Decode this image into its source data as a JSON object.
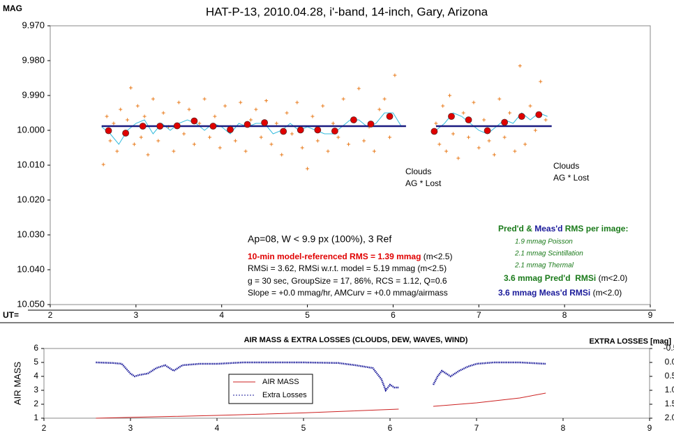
{
  "chart_data": [
    {
      "type": "scatter",
      "title": "HAT-P-13, 2010.04.28, i'-band, 14-inch, Gary, Arizona",
      "ylabel": "MAG",
      "xlabel": "UT=",
      "ylim": [
        9.97,
        10.05
      ],
      "reverse_y": true,
      "yticks": [
        {
          "value": 9.97,
          "label": "9.970"
        },
        {
          "value": 9.98,
          "label": "9.980"
        },
        {
          "value": 9.99,
          "label": "9.990"
        },
        {
          "value": 10,
          "label": "10.000"
        },
        {
          "value": 10.01,
          "label": "10.010"
        },
        {
          "value": 10.02,
          "label": "10.020"
        },
        {
          "value": 10.03,
          "label": "10.030"
        },
        {
          "value": 10.04,
          "label": "10.040"
        },
        {
          "value": 10.05,
          "label": "10.050"
        }
      ],
      "xlim": [
        2,
        9
      ],
      "xticks": [
        2,
        3,
        4,
        5,
        6,
        7,
        8,
        9
      ],
      "series": [
        {
          "mode": "plus",
          "color": "#e87a1a",
          "x": [
            2.62,
            2.66,
            2.7,
            2.74,
            2.78,
            2.82,
            2.86,
            2.9,
            2.94,
            2.98,
            3.02,
            3.06,
            3.1,
            3.14,
            3.2,
            3.26,
            3.32,
            3.38,
            3.44,
            3.5,
            3.56,
            3.62,
            3.68,
            3.74,
            3.8,
            3.86,
            3.92,
            3.98,
            4.04,
            4.1,
            4.16,
            4.22,
            4.28,
            4.34,
            4.4,
            4.46,
            4.52,
            4.58,
            4.64,
            4.7,
            4.76,
            4.82,
            4.88,
            4.94,
            5.0,
            5.06,
            5.12,
            5.18,
            5.24,
            5.3,
            5.36,
            5.42,
            5.48,
            5.54,
            5.6,
            5.66,
            5.72,
            5.78,
            5.84,
            5.9,
            5.96,
            6.02,
            6.5,
            6.54,
            6.58,
            6.62,
            6.66,
            6.7,
            6.76,
            6.82,
            6.88,
            6.94,
            7.0,
            7.06,
            7.12,
            7.18,
            7.24,
            7.3,
            7.36,
            7.42,
            7.48,
            7.54,
            7.6,
            7.66,
            7.72,
            7.78
          ],
          "values": [
            10.0098,
            9.996,
            10.003,
            9.998,
            10.006,
            9.994,
            10.001,
            9.997,
            9.9878,
            10.004,
            9.993,
            10.002,
            9.996,
            10.007,
            9.991,
            10.003,
            9.995,
            9.999,
            10.006,
            9.992,
            10.001,
            9.994,
            10.004,
            9.998,
            9.991,
            10.002,
            9.996,
            10.005,
            9.993,
            9.999,
            10.003,
            9.992,
            10.006,
            9.997,
            9.994,
            10.002,
            9.9915,
            10.004,
            9.998,
            10.007,
            9.995,
            10.001,
            9.992,
            10.005,
            10.011,
            9.996,
            10.003,
            9.993,
            10.006,
            9.998,
            10.002,
            9.991,
            10.004,
            9.997,
            9.988,
            10.003,
            9.999,
            10.006,
            9.994,
            9.991,
            10.002,
            9.9842,
            9.998,
            10.004,
            9.993,
            10.006,
            9.99,
            10.001,
            10.008,
            9.995,
            10.002,
            9.992,
            10.005,
            9.997,
            10.003,
            10.007,
            9.991,
            10.002,
            9.995,
            10.006,
            9.9815,
            10.004,
            9.993,
            10.0,
            9.986,
            9.997
          ]
        },
        {
          "mode": "line",
          "color": "#33bbdd",
          "width": 1,
          "x": [
            2.6,
            2.7,
            2.8,
            2.9,
            3.0,
            3.1,
            3.2,
            3.3,
            3.4,
            3.5,
            3.6,
            3.7,
            3.8,
            3.9,
            4.0,
            4.1,
            4.2,
            4.3,
            4.4,
            4.5,
            4.6,
            4.7,
            4.8,
            4.9,
            5.0,
            5.1,
            5.2,
            5.3,
            5.4,
            5.5,
            5.6,
            5.7,
            5.8,
            5.9,
            6.0,
            6.1,
            6.3,
            6.5,
            6.6,
            6.7,
            6.8,
            6.9,
            7.0,
            7.1,
            7.2,
            7.3,
            7.4,
            7.5,
            7.6,
            7.7,
            7.8
          ],
          "values": [
            9.999,
            10.001,
            10.004,
            10.0,
            9.998,
            9.997,
            10.001,
            9.998,
            10.0,
            9.998,
            9.997,
            9.998,
            10.0,
            9.998,
            9.999,
            10.001,
            9.998,
            9.999,
            9.998,
            9.998,
            10.001,
            10.0,
            9.998,
            10.0,
            9.999,
            10.0,
            10.001,
            10.001,
            9.999,
            9.997,
            9.997,
            9.999,
            9.998,
            9.995,
            9.995,
            9.999,
            null,
            10.0,
            9.998,
            9.995,
            9.996,
            9.998,
            10.0,
            10.001,
            9.999,
            9.997,
            9.998,
            9.995,
            9.997,
            9.995,
            9.996
          ]
        },
        {
          "mode": "line",
          "color": "#1a1a80",
          "width": 2.5,
          "x": [
            2.6,
            6.15,
            6.3,
            6.5,
            7.85
          ],
          "values": [
            9.9988,
            9.9988,
            null,
            9.9988,
            9.9988
          ]
        },
        {
          "mode": "dot",
          "color": "#e00000",
          "x": [
            2.68,
            2.88,
            3.08,
            3.28,
            3.48,
            3.68,
            3.9,
            4.1,
            4.3,
            4.5,
            4.72,
            4.92,
            5.12,
            5.32,
            5.54,
            5.74,
            5.96,
            6.48,
            6.68,
            6.88,
            7.1,
            7.3,
            7.5,
            7.7
          ],
          "values": [
            10.0001,
            10.0008,
            9.9988,
            9.9988,
            9.9987,
            9.9973,
            9.9988,
            9.9998,
            9.9983,
            9.9978,
            10.0003,
            9.9999,
            9.9999,
            10.0002,
            9.997,
            9.9982,
            9.996,
            10.0003,
            9.996,
            9.997,
            10.0001,
            9.9977,
            9.996,
            9.9955
          ]
        }
      ],
      "annotations": {
        "clouds_1": "Clouds",
        "lost_1": "AG * Lost",
        "clouds_2": "Clouds",
        "lost_2": "AG * Lost",
        "ap": "Ap=08, W < 9.9 px (100%), 3 Ref",
        "rms10": "10-min model-referenced RMS = 1.39 mmag",
        "rms10_cond": " (m<2.5)",
        "rmsi": "RMSi = 3.62, RMSi w.r.t. model = 5.19 mmag (m<2.5)",
        "g": "g = 30 sec, GroupSize = 17, 86%, RCS = 1.12, Q=0.6",
        "slope": "Slope = +0.0 mmag/hr, AMCurv = +0.0 mmag/airmass",
        "head_pred": "Pred'd",
        "head_amp": " & ",
        "head_meas": "Meas'd",
        "head_rest": " RMS per image:",
        "poisson": "1.9 mmag Poisson",
        "scint": "2.1 mmag Scintillation",
        "thermal": "2.1 mmag Thermal",
        "pred": "3.6 mmag Pred'd  RMSi",
        "pred_cond": " (m<2.0)",
        "meas": "3.6 mmag Meas'd RMSi",
        "meas_cond": " (m<2.0)"
      }
    },
    {
      "type": "line",
      "title": "AIR MASS & EXTRA LOSSES (CLOUDS, DEW, WAVES, WIND)",
      "ylabel": "AIR MASS",
      "y2label": "EXTRA LOSSES [mag]",
      "xlim": [
        2,
        9
      ],
      "xticks": [
        2,
        3,
        4,
        5,
        6,
        7,
        8,
        9
      ],
      "ylim": [
        1,
        6
      ],
      "yticks": [
        1,
        2,
        3,
        4,
        5,
        6
      ],
      "y2lim": [
        -0.5,
        2.0
      ],
      "reverse_y2": true,
      "y2ticks": [
        {
          "value": -0.5,
          "label": "-0.5"
        },
        {
          "value": 0,
          "label": "0.0"
        },
        {
          "value": 0.5,
          "label": "0.5"
        },
        {
          "value": 1,
          "label": "1.0"
        },
        {
          "value": 1.5,
          "label": "1.5"
        },
        {
          "value": 2,
          "label": "2.0"
        }
      ],
      "legend": "center",
      "series": [
        {
          "name": "AIR MASS",
          "color": "#cc2020",
          "dash": false,
          "x": [
            2.6,
            4,
            5,
            6.1,
            6.3,
            6.5,
            7,
            7.5,
            7.8
          ],
          "values": [
            1.0,
            1.2,
            1.38,
            1.65,
            null,
            1.85,
            2.1,
            2.45,
            2.8
          ]
        },
        {
          "name": "Extra Losses",
          "color": "#1a1a9a",
          "dash": true,
          "axis": "y2",
          "x": [
            2.6,
            2.8,
            2.9,
            3.0,
            3.05,
            3.1,
            3.2,
            3.3,
            3.4,
            3.5,
            3.6,
            3.8,
            4.0,
            4.3,
            4.6,
            5.0,
            5.4,
            5.6,
            5.8,
            5.9,
            5.95,
            6.0,
            6.05,
            6.1,
            6.3,
            6.5,
            6.55,
            6.6,
            6.7,
            6.8,
            6.9,
            7.0,
            7.2,
            7.5,
            7.8
          ],
          "values": [
            0.0,
            0.02,
            0.05,
            0.4,
            0.5,
            0.45,
            0.4,
            0.2,
            0.1,
            0.3,
            0.1,
            0.05,
            0.05,
            0.0,
            0.0,
            0.0,
            0.02,
            0.1,
            0.2,
            0.6,
            1.0,
            0.8,
            0.9,
            0.9,
            null,
            0.8,
            0.5,
            0.3,
            0.5,
            0.3,
            0.15,
            0.05,
            0.0,
            0.0,
            0.05
          ]
        }
      ]
    }
  ]
}
